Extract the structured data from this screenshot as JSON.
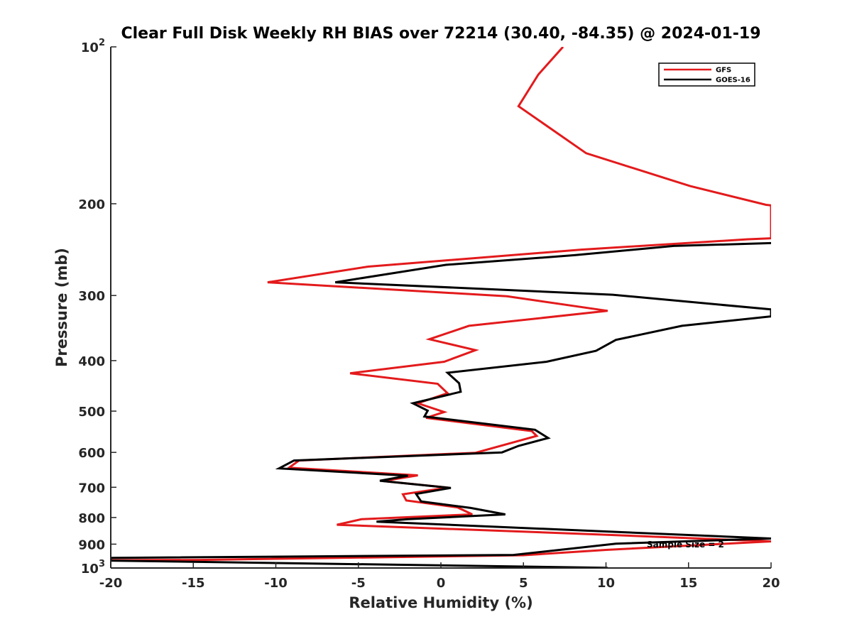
{
  "chart_data": {
    "type": "line",
    "title": "Clear Full Disk Weekly RH BIAS over 72214 (30.40, -84.35) @ 2024-01-19",
    "xlabel": "Relative Humidity (%)",
    "ylabel": "Pressure (mb)",
    "xlim": [
      -20,
      20
    ],
    "ylim": [
      100,
      1000
    ],
    "yscale": "log",
    "y_reversed": true,
    "grid": false,
    "x_ticks": [
      -20,
      -15,
      -10,
      -5,
      0,
      5,
      10,
      15,
      20
    ],
    "x_tick_labels": [
      "-20",
      "-15",
      "-10",
      "-5",
      "0",
      "5",
      "10",
      "15",
      "20"
    ],
    "y_ticks": [
      {
        "value": 100,
        "base": "10",
        "exp": "2"
      },
      {
        "value": 200,
        "base": "200",
        "exp": ""
      },
      {
        "value": 300,
        "base": "300",
        "exp": ""
      },
      {
        "value": 400,
        "base": "400",
        "exp": ""
      },
      {
        "value": 500,
        "base": "500",
        "exp": ""
      },
      {
        "value": 600,
        "base": "600",
        "exp": ""
      },
      {
        "value": 700,
        "base": "700",
        "exp": ""
      },
      {
        "value": 800,
        "base": "800",
        "exp": ""
      },
      {
        "value": 900,
        "base": "900",
        "exp": ""
      },
      {
        "value": 1000,
        "base": "10",
        "exp": "3"
      }
    ],
    "legend_position": "top-right",
    "annotation": "Sample Size = 2",
    "series": [
      {
        "name": "GFS",
        "color": "#e31a1c",
        "points": [
          [
            7.4,
            100
          ],
          [
            5.9,
            113
          ],
          [
            4.7,
            130
          ],
          [
            8.8,
            160
          ],
          [
            15.1,
            185
          ],
          [
            19.7,
            201
          ],
          [
            20.0,
            201.5
          ],
          [
            20.0,
            233
          ],
          [
            18.6,
            234
          ],
          [
            8.5,
            245
          ],
          [
            -4.4,
            264
          ],
          [
            -10.5,
            283
          ],
          [
            4.0,
            301
          ],
          [
            10.1,
            321
          ],
          [
            1.7,
            343
          ],
          [
            -0.7,
            364
          ],
          [
            2.1,
            382
          ],
          [
            0.2,
            402
          ],
          [
            -5.5,
            423
          ],
          [
            -0.2,
            443
          ],
          [
            0.4,
            462
          ],
          [
            -1.4,
            483
          ],
          [
            0.2,
            502
          ],
          [
            -0.9,
            515
          ],
          [
            5.5,
            546
          ],
          [
            5.8,
            558
          ],
          [
            2.1,
            601
          ],
          [
            -8.6,
            622
          ],
          [
            -9.2,
            642
          ],
          [
            -1.4,
            664
          ],
          [
            -3.5,
            681
          ],
          [
            0.4,
            701
          ],
          [
            -2.3,
            722
          ],
          [
            -2.1,
            742
          ],
          [
            1.0,
            765
          ],
          [
            1.9,
            789
          ],
          [
            -4.8,
            806
          ],
          [
            -6.3,
            826
          ],
          [
            9.5,
            862
          ],
          [
            20.0,
            889
          ],
          [
            10.0,
            923
          ],
          [
            5.0,
            945
          ],
          [
            -14.6,
            965
          ],
          [
            -20.0,
            966
          ]
        ]
      },
      {
        "name": "GOES-16",
        "color": "#000000",
        "points": [
          [
            20.0,
            238
          ],
          [
            14.1,
            241
          ],
          [
            8.1,
            251
          ],
          [
            0.3,
            262
          ],
          [
            -6.4,
            283
          ],
          [
            10.4,
            299
          ],
          [
            20.0,
            319
          ],
          [
            20.0,
            329
          ],
          [
            14.6,
            343
          ],
          [
            10.6,
            365
          ],
          [
            9.4,
            383
          ],
          [
            6.4,
            402
          ],
          [
            0.4,
            422
          ],
          [
            1.1,
            442
          ],
          [
            1.2,
            459
          ],
          [
            -1.7,
            483
          ],
          [
            -0.8,
            499
          ],
          [
            -1.0,
            512
          ],
          [
            5.7,
            543
          ],
          [
            6.5,
            563
          ],
          [
            4.7,
            583
          ],
          [
            3.7,
            600
          ],
          [
            -8.9,
            622
          ],
          [
            -9.8,
            644
          ],
          [
            -2.0,
            665
          ],
          [
            -3.7,
            680
          ],
          [
            0.6,
            702
          ],
          [
            -1.5,
            721
          ],
          [
            -1.2,
            745
          ],
          [
            1.8,
            767
          ],
          [
            3.9,
            789
          ],
          [
            -2.0,
            806
          ],
          [
            -3.9,
            815
          ],
          [
            20.0,
            878
          ],
          [
            10.6,
            898
          ],
          [
            4.4,
            944
          ],
          [
            -20.0,
            956
          ],
          [
            -20.0,
            968
          ],
          [
            10.1,
            999
          ]
        ]
      }
    ]
  }
}
